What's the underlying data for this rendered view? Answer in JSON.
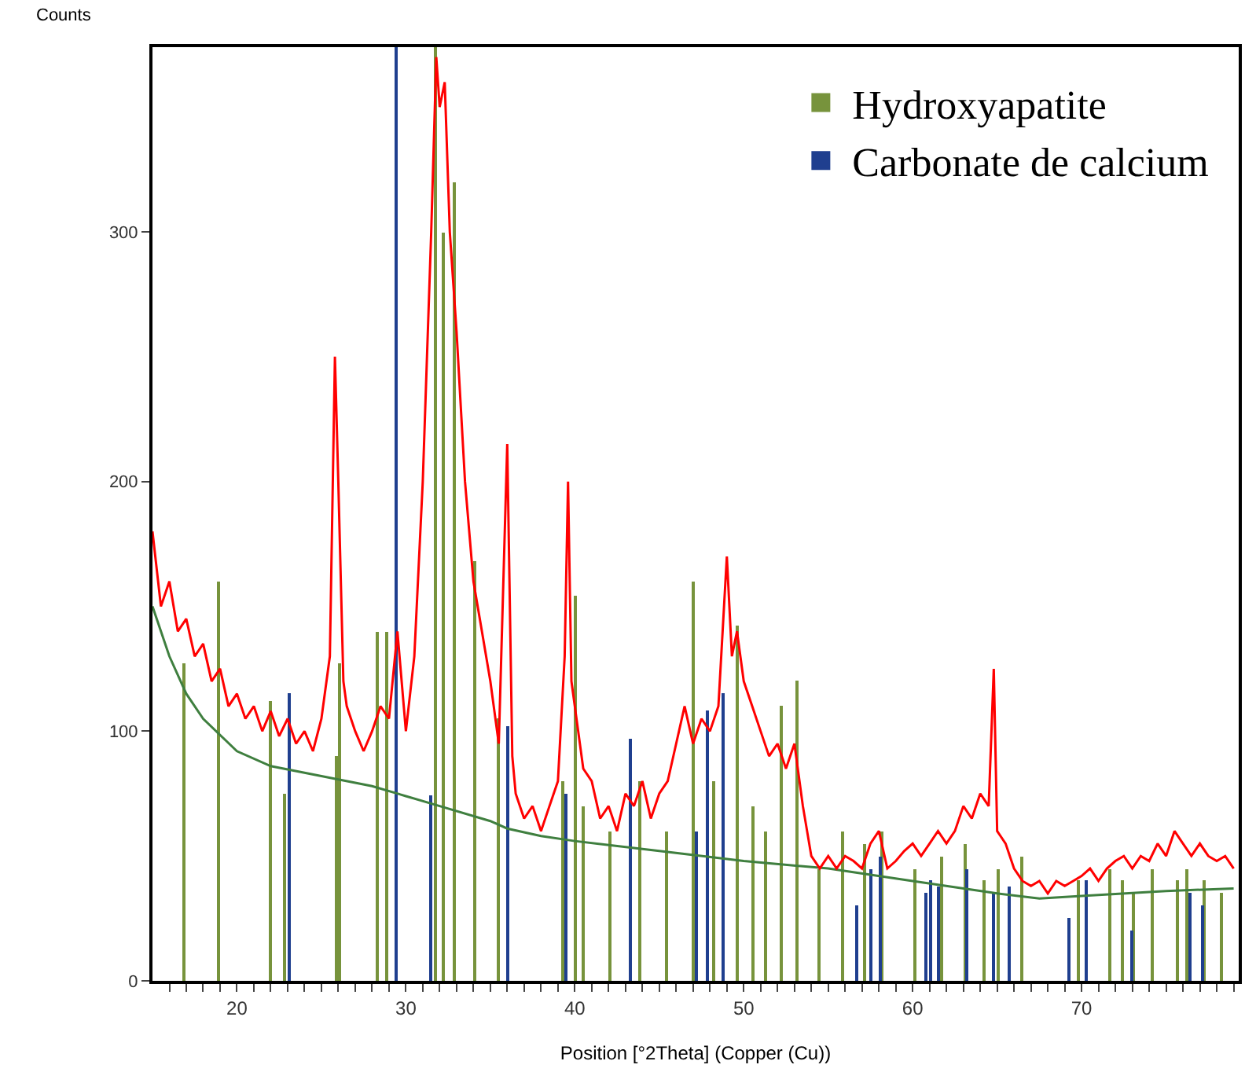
{
  "chart_data": {
    "type": "line",
    "xlabel": "Position [°2Theta] (Copper (Cu))",
    "ylabel": "Counts",
    "xlim": [
      15,
      79.3
    ],
    "ylim": [
      0,
      374
    ],
    "xticks": [
      {
        "value": 16,
        "label": null
      },
      {
        "value": 17,
        "label": null
      },
      {
        "value": 18,
        "label": null
      },
      {
        "value": 19,
        "label": null
      },
      20,
      {
        "value": 21,
        "label": null
      },
      {
        "value": 22,
        "label": null
      },
      {
        "value": 23,
        "label": null
      },
      {
        "value": 24,
        "label": null
      },
      {
        "value": 25,
        "label": null
      },
      {
        "value": 26,
        "label": null
      },
      {
        "value": 27,
        "label": null
      },
      {
        "value": 28,
        "label": null
      },
      {
        "value": 29,
        "label": null
      },
      30,
      {
        "value": 31,
        "label": null
      },
      {
        "value": 32,
        "label": null
      },
      {
        "value": 33,
        "label": null
      },
      {
        "value": 34,
        "label": null
      },
      {
        "value": 35,
        "label": null
      },
      {
        "value": 36,
        "label": null
      },
      {
        "value": 37,
        "label": null
      },
      {
        "value": 38,
        "label": null
      },
      {
        "value": 39,
        "label": null
      },
      40,
      {
        "value": 41,
        "label": null
      },
      {
        "value": 42,
        "label": null
      },
      {
        "value": 43,
        "label": null
      },
      {
        "value": 44,
        "label": null
      },
      {
        "value": 45,
        "label": null
      },
      {
        "value": 46,
        "label": null
      },
      {
        "value": 47,
        "label": null
      },
      {
        "value": 48,
        "label": null
      },
      {
        "value": 49,
        "label": null
      },
      50,
      {
        "value": 51,
        "label": null
      },
      {
        "value": 52,
        "label": null
      },
      {
        "value": 53,
        "label": null
      },
      {
        "value": 54,
        "label": null
      },
      {
        "value": 55,
        "label": null
      },
      {
        "value": 56,
        "label": null
      },
      {
        "value": 57,
        "label": null
      },
      {
        "value": 58,
        "label": null
      },
      {
        "value": 59,
        "label": null
      },
      60,
      {
        "value": 61,
        "label": null
      },
      {
        "value": 62,
        "label": null
      },
      {
        "value": 63,
        "label": null
      },
      {
        "value": 64,
        "label": null
      },
      {
        "value": 65,
        "label": null
      },
      {
        "value": 66,
        "label": null
      },
      {
        "value": 67,
        "label": null
      },
      {
        "value": 68,
        "label": null
      },
      {
        "value": 69,
        "label": null
      },
      70,
      {
        "value": 71,
        "label": null
      },
      {
        "value": 72,
        "label": null
      },
      {
        "value": 73,
        "label": null
      },
      {
        "value": 74,
        "label": null
      },
      {
        "value": 75,
        "label": null
      },
      {
        "value": 76,
        "label": null
      },
      {
        "value": 77,
        "label": null
      },
      {
        "value": 78,
        "label": null
      },
      {
        "value": 79,
        "label": null
      }
    ],
    "yticks": [
      0,
      100,
      200,
      300
    ],
    "legend": "top right",
    "marker": "none",
    "series": [
      {
        "type": "bar",
        "name": "Hydroxyapatite",
        "color": "#77933c",
        "x": [
          16.9,
          18.9,
          22.0,
          22.8,
          25.9,
          26.1,
          28.3,
          28.9,
          31.8,
          32.2,
          32.9,
          34.1,
          35.5,
          39.3,
          40.0,
          40.5,
          42.1,
          43.9,
          45.4,
          47.0,
          48.2,
          49.6,
          50.6,
          51.3,
          52.2,
          53.2,
          54.5,
          55.9,
          57.2,
          58.2,
          60.1,
          61.7,
          63.1,
          64.2,
          65.1,
          66.5,
          69.8,
          71.7,
          72.4,
          73.1,
          74.2,
          75.7,
          76.2,
          77.3,
          78.3
        ],
        "values": [
          127,
          160,
          112,
          75,
          90,
          127,
          140,
          140,
          374,
          300,
          320,
          168,
          105,
          80,
          154,
          70,
          60,
          80,
          60,
          160,
          80,
          142,
          70,
          60,
          110,
          120,
          45,
          60,
          55,
          60,
          45,
          50,
          55,
          40,
          45,
          50,
          40,
          45,
          40,
          35,
          45,
          40,
          45,
          40,
          35
        ]
      },
      {
        "type": "bar",
        "name": "Carbonate de calcium",
        "color": "#1f3f8f",
        "x": [
          23.1,
          29.4,
          31.5,
          36.0,
          39.5,
          43.3,
          47.2,
          47.9,
          48.8,
          56.7,
          57.5,
          58.1,
          60.8,
          61.1,
          61.5,
          63.2,
          64.8,
          65.7,
          69.3,
          70.3,
          73.0,
          76.4,
          77.2
        ],
        "values": [
          115,
          374,
          74,
          102,
          75,
          97,
          60,
          108,
          115,
          30,
          45,
          50,
          35,
          40,
          38,
          45,
          35,
          38,
          25,
          40,
          20,
          35,
          30
        ]
      },
      {
        "color": "#3f7f3f",
        "x": [
          15,
          16,
          17,
          18,
          20,
          22,
          25,
          28,
          30,
          32,
          35,
          36,
          38,
          40,
          45,
          50,
          55,
          60,
          65,
          67.5,
          70,
          75,
          79
        ],
        "values": [
          150,
          130,
          115,
          105,
          92,
          86,
          82,
          78,
          74,
          70,
          64,
          61,
          58,
          56,
          52,
          48,
          45,
          40,
          35,
          33,
          34,
          36,
          37
        ]
      },
      {
        "color": "#ff0000",
        "x": [
          15,
          15.5,
          16,
          16.5,
          17,
          17.5,
          18,
          18.5,
          19,
          19.5,
          20,
          20.5,
          21,
          21.5,
          22,
          22.5,
          23,
          23.5,
          24,
          24.5,
          25,
          25.5,
          25.8,
          26,
          26.3,
          26.5,
          27,
          27.5,
          28,
          28.5,
          29,
          29.5,
          30,
          30.5,
          31,
          31.5,
          31.8,
          32,
          32.3,
          32.6,
          33,
          33.5,
          34,
          34.5,
          35,
          35.5,
          36,
          36.3,
          36.5,
          37,
          37.5,
          38,
          38.5,
          39,
          39.4,
          39.6,
          39.8,
          40,
          40.5,
          41,
          41.5,
          42,
          42.5,
          43,
          43.5,
          44,
          44.5,
          45,
          45.5,
          46,
          46.5,
          47,
          47.5,
          48,
          48.5,
          49,
          49.3,
          49.6,
          50,
          50.5,
          51,
          51.5,
          52,
          52.5,
          53,
          53.5,
          54,
          54.5,
          55,
          55.5,
          56,
          56.5,
          57,
          57.5,
          58,
          58.5,
          59,
          59.5,
          60,
          60.5,
          61,
          61.5,
          62,
          62.5,
          63,
          63.5,
          64,
          64.5,
          64.8,
          65,
          65.5,
          66,
          66.5,
          67,
          67.5,
          68,
          68.5,
          69,
          69.5,
          70,
          70.5,
          71,
          71.5,
          72,
          72.5,
          73,
          73.5,
          74,
          74.5,
          75,
          75.5,
          76,
          76.5,
          77,
          77.5,
          78,
          78.5,
          79
        ],
        "values": [
          180,
          150,
          160,
          140,
          145,
          130,
          135,
          120,
          125,
          110,
          115,
          105,
          110,
          100,
          108,
          98,
          105,
          95,
          100,
          92,
          105,
          130,
          250,
          200,
          120,
          110,
          100,
          92,
          100,
          110,
          105,
          140,
          100,
          130,
          200,
          300,
          370,
          350,
          360,
          300,
          260,
          200,
          160,
          140,
          120,
          95,
          215,
          90,
          75,
          65,
          70,
          60,
          70,
          80,
          130,
          200,
          120,
          110,
          85,
          80,
          65,
          70,
          60,
          75,
          70,
          80,
          65,
          75,
          80,
          95,
          110,
          95,
          105,
          100,
          110,
          170,
          130,
          140,
          120,
          110,
          100,
          90,
          95,
          85,
          95,
          70,
          50,
          45,
          50,
          45,
          50,
          48,
          45,
          55,
          60,
          45,
          48,
          52,
          55,
          50,
          55,
          60,
          55,
          60,
          70,
          65,
          75,
          70,
          125,
          60,
          55,
          45,
          40,
          38,
          40,
          35,
          40,
          38,
          40,
          42,
          45,
          40,
          45,
          48,
          50,
          45,
          50,
          48,
          55,
          50,
          60,
          55,
          50,
          55,
          50,
          48,
          50,
          45
        ]
      }
    ]
  }
}
